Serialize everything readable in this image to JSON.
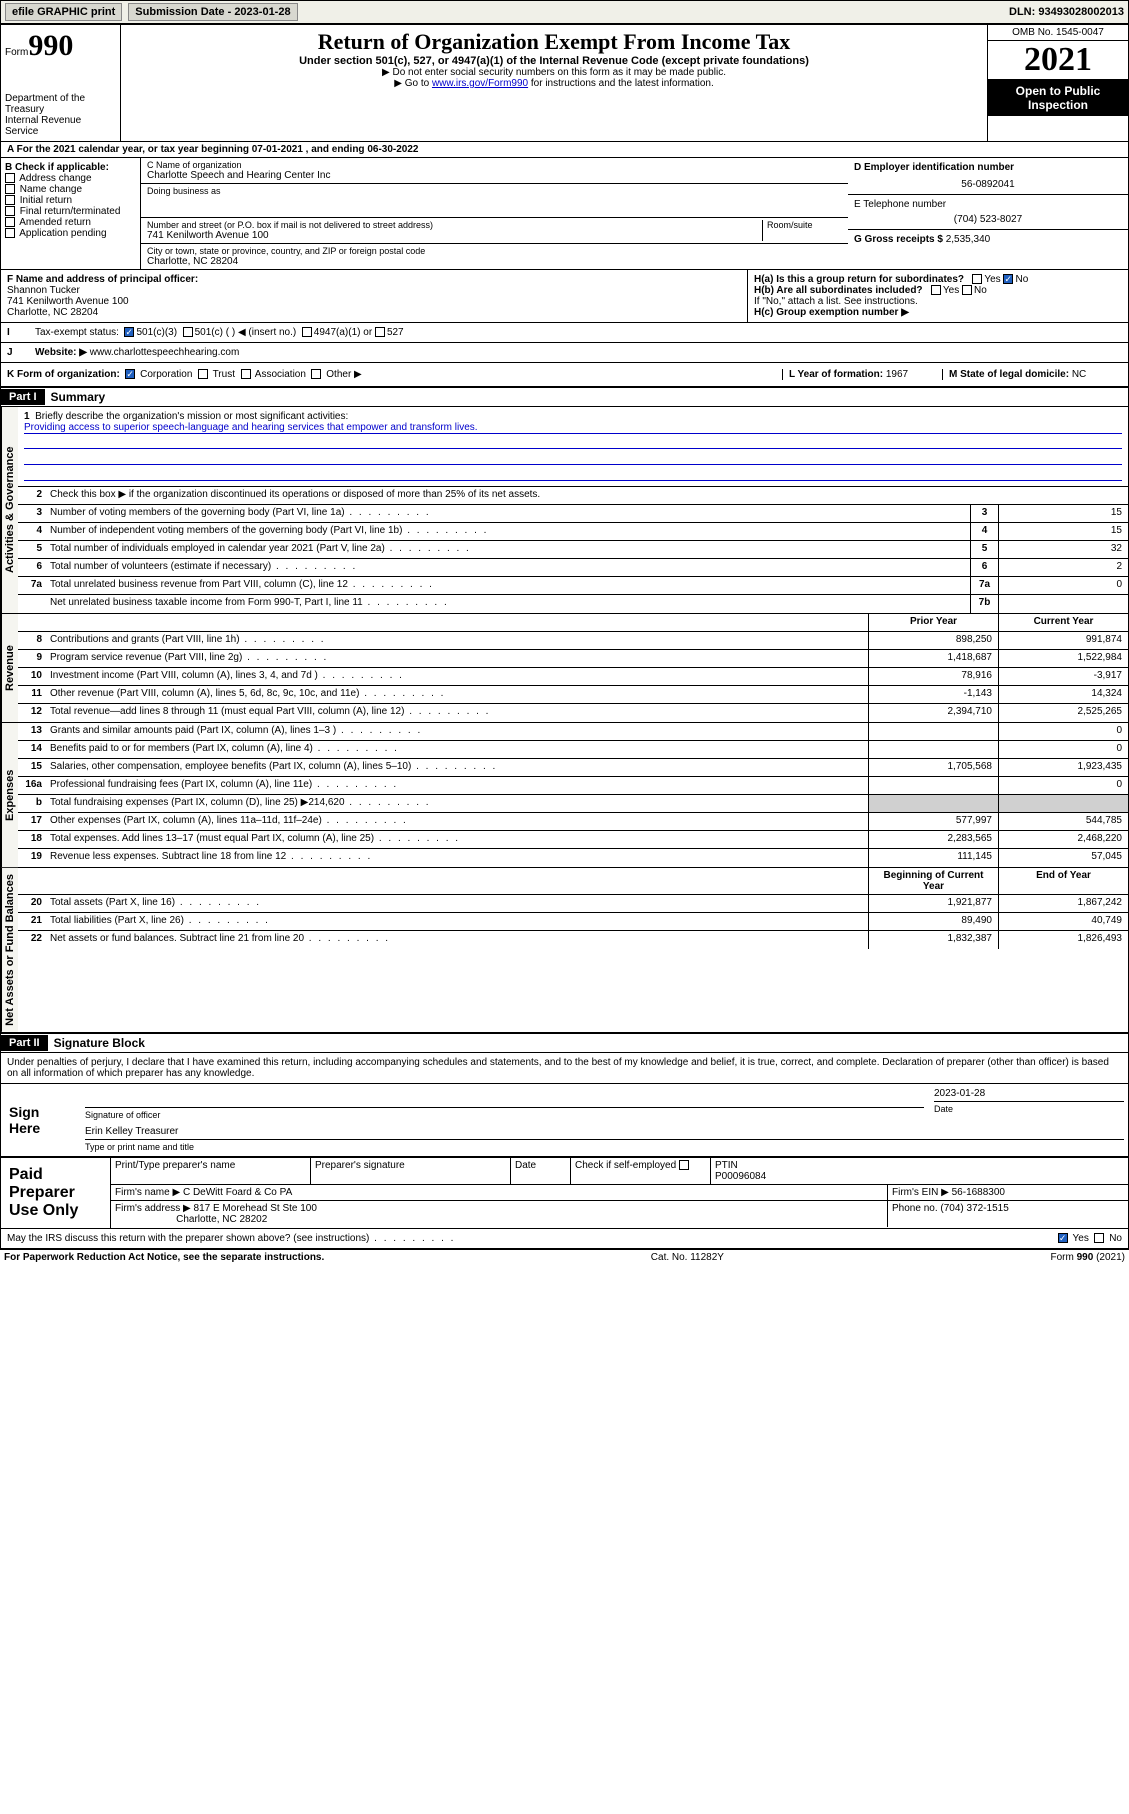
{
  "topbar": {
    "efile_label": "efile GRAPHIC print",
    "submission_label": "Submission Date - 2023-01-28",
    "dln_label": "DLN: 93493028002013"
  },
  "header": {
    "form_label": "Form",
    "form_number": "990",
    "dept": "Department of the Treasury",
    "irs": "Internal Revenue Service",
    "title": "Return of Organization Exempt From Income Tax",
    "subtitle": "Under section 501(c), 527, or 4947(a)(1) of the Internal Revenue Code (except private foundations)",
    "instr1": "▶ Do not enter social security numbers on this form as it may be made public.",
    "instr2_pre": "▶ Go to ",
    "instr2_link": "www.irs.gov/Form990",
    "instr2_post": " for instructions and the latest information.",
    "omb": "OMB No. 1545-0047",
    "year": "2021",
    "open_public": "Open to Public Inspection"
  },
  "section_a": {
    "text": "A For the 2021 calendar year, or tax year beginning 07-01-2021   , and ending 06-30-2022"
  },
  "block_b": {
    "label": "B Check if applicable:",
    "items": [
      "Address change",
      "Name change",
      "Initial return",
      "Final return/terminated",
      "Amended return",
      "Application pending"
    ]
  },
  "block_c": {
    "name_label": "C Name of organization",
    "name": "Charlotte Speech and Hearing Center Inc",
    "dba_label": "Doing business as",
    "dba": "",
    "addr_label": "Number and street (or P.O. box if mail is not delivered to street address)",
    "room_label": "Room/suite",
    "addr": "741 Kenilworth Avenue 100",
    "city_label": "City or town, state or province, country, and ZIP or foreign postal code",
    "city": "Charlotte, NC  28204"
  },
  "block_d": {
    "label": "D Employer identification number",
    "value": "56-0892041"
  },
  "block_e": {
    "label": "E Telephone number",
    "value": "(704) 523-8027"
  },
  "block_g": {
    "label": "G Gross receipts $",
    "value": "2,535,340"
  },
  "block_f": {
    "label": "F Name and address of principal officer:",
    "name": "Shannon Tucker",
    "addr1": "741 Kenilworth Avenue 100",
    "addr2": "Charlotte, NC  28204"
  },
  "block_h": {
    "ha_label": "H(a)  Is this a group return for subordinates?",
    "hb_label": "H(b)  Are all subordinates included?",
    "hb_note": "If \"No,\" attach a list. See instructions.",
    "hc_label": "H(c)  Group exemption number ▶",
    "yes": "Yes",
    "no": "No"
  },
  "row_i": {
    "label": "Tax-exempt status:",
    "opt1": "501(c)(3)",
    "opt2": "501(c) (  ) ◀ (insert no.)",
    "opt3": "4947(a)(1) or",
    "opt4": "527"
  },
  "row_j": {
    "label": "Website: ▶",
    "value": "www.charlottespeechhearing.com"
  },
  "row_k": {
    "label": "K Form of organization:",
    "opts": [
      "Corporation",
      "Trust",
      "Association",
      "Other ▶"
    ]
  },
  "row_l": {
    "label": "L Year of formation:",
    "value": "1967"
  },
  "row_m": {
    "label": "M State of legal domicile:",
    "value": "NC"
  },
  "part1": {
    "header": "Part I",
    "title": "Summary"
  },
  "summary": {
    "line1_label": "Briefly describe the organization's mission or most significant activities:",
    "line1_mission": "Providing access to superior speech-language and hearing services that empower and transform lives.",
    "line2_label": "Check this box ▶        if the organization discontinued its operations or disposed of more than 25% of its net assets.",
    "prior_header": "Prior Year",
    "current_header": "Current Year",
    "begin_header": "Beginning of Current Year",
    "end_header": "End of Year",
    "rows_gov": [
      {
        "n": "3",
        "d": "Number of voting members of the governing body (Part VI, line 1a)",
        "box": "3",
        "v": "15"
      },
      {
        "n": "4",
        "d": "Number of independent voting members of the governing body (Part VI, line 1b)",
        "box": "4",
        "v": "15"
      },
      {
        "n": "5",
        "d": "Total number of individuals employed in calendar year 2021 (Part V, line 2a)",
        "box": "5",
        "v": "32"
      },
      {
        "n": "6",
        "d": "Total number of volunteers (estimate if necessary)",
        "box": "6",
        "v": "2"
      },
      {
        "n": "7a",
        "d": "Total unrelated business revenue from Part VIII, column (C), line 12",
        "box": "7a",
        "v": "0"
      },
      {
        "n": "",
        "d": "Net unrelated business taxable income from Form 990-T, Part I, line 11",
        "box": "7b",
        "v": ""
      }
    ],
    "rows_rev": [
      {
        "n": "8",
        "d": "Contributions and grants (Part VIII, line 1h)",
        "p": "898,250",
        "c": "991,874"
      },
      {
        "n": "9",
        "d": "Program service revenue (Part VIII, line 2g)",
        "p": "1,418,687",
        "c": "1,522,984"
      },
      {
        "n": "10",
        "d": "Investment income (Part VIII, column (A), lines 3, 4, and 7d )",
        "p": "78,916",
        "c": "-3,917"
      },
      {
        "n": "11",
        "d": "Other revenue (Part VIII, column (A), lines 5, 6d, 8c, 9c, 10c, and 11e)",
        "p": "-1,143",
        "c": "14,324"
      },
      {
        "n": "12",
        "d": "Total revenue—add lines 8 through 11 (must equal Part VIII, column (A), line 12)",
        "p": "2,394,710",
        "c": "2,525,265"
      }
    ],
    "rows_exp": [
      {
        "n": "13",
        "d": "Grants and similar amounts paid (Part IX, column (A), lines 1–3 )",
        "p": "",
        "c": "0"
      },
      {
        "n": "14",
        "d": "Benefits paid to or for members (Part IX, column (A), line 4)",
        "p": "",
        "c": "0"
      },
      {
        "n": "15",
        "d": "Salaries, other compensation, employee benefits (Part IX, column (A), lines 5–10)",
        "p": "1,705,568",
        "c": "1,923,435"
      },
      {
        "n": "16a",
        "d": "Professional fundraising fees (Part IX, column (A), line 11e)",
        "p": "",
        "c": "0"
      },
      {
        "n": "b",
        "d": "Total fundraising expenses (Part IX, column (D), line 25) ▶214,620",
        "p": "shade",
        "c": "shade"
      },
      {
        "n": "17",
        "d": "Other expenses (Part IX, column (A), lines 11a–11d, 11f–24e)",
        "p": "577,997",
        "c": "544,785"
      },
      {
        "n": "18",
        "d": "Total expenses. Add lines 13–17 (must equal Part IX, column (A), line 25)",
        "p": "2,283,565",
        "c": "2,468,220"
      },
      {
        "n": "19",
        "d": "Revenue less expenses. Subtract line 18 from line 12",
        "p": "111,145",
        "c": "57,045"
      }
    ],
    "rows_net": [
      {
        "n": "20",
        "d": "Total assets (Part X, line 16)",
        "p": "1,921,877",
        "c": "1,867,242"
      },
      {
        "n": "21",
        "d": "Total liabilities (Part X, line 26)",
        "p": "89,490",
        "c": "40,749"
      },
      {
        "n": "22",
        "d": "Net assets or fund balances. Subtract line 21 from line 20",
        "p": "1,832,387",
        "c": "1,826,493"
      }
    ]
  },
  "vtabs": {
    "gov": "Activities & Governance",
    "rev": "Revenue",
    "exp": "Expenses",
    "net": "Net Assets or Fund Balances"
  },
  "part2": {
    "header": "Part II",
    "title": "Signature Block"
  },
  "sig": {
    "penalty": "Under penalties of perjury, I declare that I have examined this return, including accompanying schedules and statements, and to the best of my knowledge and belief, it is true, correct, and complete. Declaration of preparer (other than officer) is based on all information of which preparer has any knowledge.",
    "sign_here": "Sign Here",
    "sig_officer": "Signature of officer",
    "date": "Date",
    "date_val": "2023-01-28",
    "name_title": "Erin Kelley Treasurer",
    "type_name": "Type or print name and title"
  },
  "prep": {
    "label": "Paid Preparer Use Only",
    "print_name": "Print/Type preparer's name",
    "prep_sig": "Preparer's signature",
    "date": "Date",
    "check_self": "Check        if self-employed",
    "ptin_label": "PTIN",
    "ptin": "P00096084",
    "firm_name_label": "Firm's name    ▶",
    "firm_name": "C DeWitt Foard & Co PA",
    "firm_ein_label": "Firm's EIN ▶",
    "firm_ein": "56-1688300",
    "firm_addr_label": "Firm's address ▶",
    "firm_addr": "817 E Morehead St Ste 100",
    "firm_city": "Charlotte, NC  28202",
    "phone_label": "Phone no.",
    "phone": "(704) 372-1515"
  },
  "footer": {
    "discuss": "May the IRS discuss this return with the preparer shown above? (see instructions)",
    "yes": "Yes",
    "no": "No",
    "paperwork": "For Paperwork Reduction Act Notice, see the separate instructions.",
    "cat": "Cat. No. 11282Y",
    "form": "Form 990 (2021)"
  }
}
